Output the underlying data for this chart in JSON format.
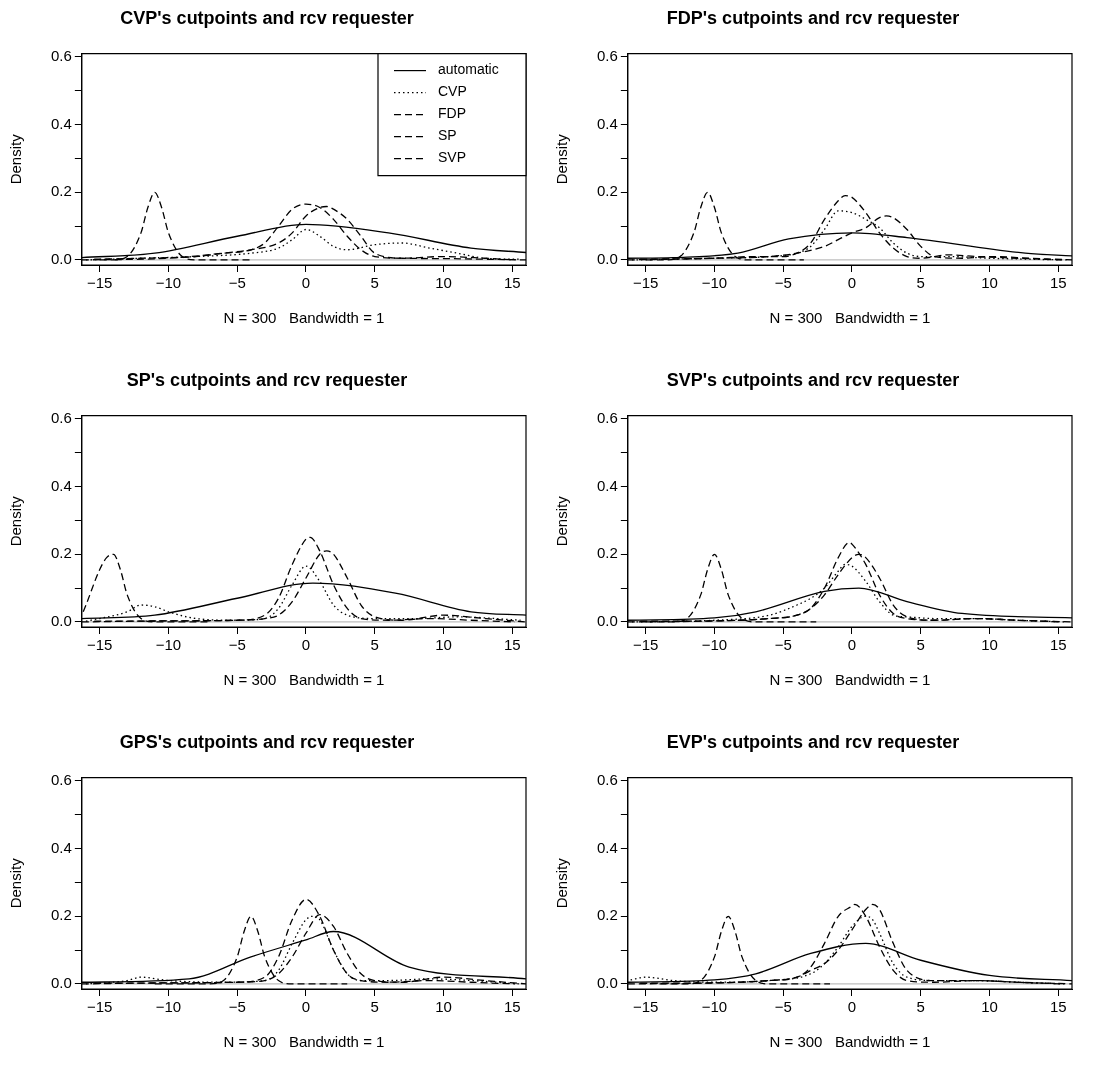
{
  "chart_data": [
    {
      "type": "line",
      "title": "CVP's cutpoints and rcv requester",
      "xlabel": "N = 300   Bandwidth = 1",
      "ylabel": "Density",
      "xlim": [
        -16.3,
        16
      ],
      "ylim": [
        -0.015,
        0.61
      ],
      "xticks": [
        {
          "value": -15,
          "label": "−15"
        },
        {
          "value": -10,
          "label": "−10"
        },
        {
          "value": -5,
          "label": "−5"
        },
        0,
        5,
        10,
        15
      ],
      "yticks": [
        {
          "value": 0,
          "label": "0.0"
        },
        {
          "value": 0.1,
          "label": null
        },
        0.2,
        {
          "value": 0.3,
          "label": null
        },
        0.4,
        {
          "value": 0.5,
          "label": null
        },
        0.6
      ],
      "grid": false,
      "legend": "top right",
      "ref_lines": [
        {
          "axis": "y",
          "value": 0,
          "color": "#bebebe"
        }
      ],
      "series": [
        {
          "name": "automatic",
          "color": "#000000",
          "line_style": "solid",
          "x": [
            -16.3,
            -11,
            -5,
            0,
            6,
            12,
            16
          ],
          "values": [
            0.007,
            0.02,
            0.07,
            0.105,
            0.08,
            0.035,
            0.022
          ]
        },
        {
          "name": "CVP",
          "color": "#000000",
          "line_style": "dotted",
          "x": [
            -16,
            -12,
            -8,
            -4,
            -2,
            -1,
            0,
            1,
            2,
            3,
            5,
            7,
            9,
            11,
            13,
            15.6
          ],
          "values": [
            0,
            0.005,
            0.01,
            0.02,
            0.035,
            0.06,
            0.09,
            0.07,
            0.04,
            0.03,
            0.045,
            0.05,
            0.035,
            0.02,
            0.005,
            0.002
          ]
        },
        {
          "name": "FDP",
          "color": "#000000",
          "line_style": "dashed",
          "x": [
            -15.4,
            -12,
            -8,
            -6,
            -4,
            -2,
            -1,
            0,
            1,
            1.5,
            2,
            3,
            4,
            5,
            7,
            10,
            13,
            16
          ],
          "values": [
            0.002,
            0.005,
            0.01,
            0.02,
            0.03,
            0.05,
            0.08,
            0.13,
            0.155,
            0.158,
            0.15,
            0.12,
            0.07,
            0.02,
            0.005,
            0.004,
            0.002,
            0
          ]
        },
        {
          "name": "SP",
          "color": "#000000",
          "line_style": "dashed",
          "x": [
            -16.3,
            -10,
            -6,
            -4,
            -3,
            -2,
            -1,
            0,
            1,
            2,
            3,
            4,
            5,
            7,
            10,
            13,
            15.2
          ],
          "values": [
            0,
            0.005,
            0.02,
            0.03,
            0.05,
            0.1,
            0.15,
            0.165,
            0.155,
            0.12,
            0.07,
            0.03,
            0.01,
            0.005,
            0.01,
            0.005,
            0
          ]
        },
        {
          "name": "SVP",
          "color": "#000000",
          "line_style": "dashed",
          "x": [
            -15,
            -14,
            -13,
            -12,
            -11.5,
            -11,
            -10.5,
            -10,
            -9,
            -8,
            -4
          ],
          "values": [
            0,
            0,
            0.01,
            0.08,
            0.155,
            0.2,
            0.155,
            0.08,
            0.01,
            0,
            0
          ]
        }
      ]
    },
    {
      "type": "line",
      "title": "FDP's cutpoints and rcv requester",
      "xlabel": "N = 300   Bandwidth = 1",
      "ylabel": "Density",
      "xlim": [
        -16.3,
        16
      ],
      "ylim": [
        -0.015,
        0.61
      ],
      "xticks": [
        {
          "value": -15,
          "label": "−15"
        },
        {
          "value": -10,
          "label": "−10"
        },
        {
          "value": -5,
          "label": "−5"
        },
        0,
        5,
        10,
        15
      ],
      "yticks": [
        {
          "value": 0,
          "label": "0.0"
        },
        {
          "value": 0.1,
          "label": null
        },
        0.2,
        {
          "value": 0.3,
          "label": null
        },
        0.4,
        {
          "value": 0.5,
          "label": null
        },
        0.6
      ],
      "grid": false,
      "ref_lines": [
        {
          "axis": "y",
          "value": 0,
          "color": "#bebebe"
        }
      ],
      "series": [
        {
          "color": "#000000",
          "line_style": "solid",
          "x": [
            -16.3,
            -13,
            -8.3,
            -4.6,
            0,
            4,
            12.6,
            16
          ],
          "values": [
            0.005,
            0.007,
            0.02,
            0.062,
            0.08,
            0.066,
            0.02,
            0.012
          ]
        },
        {
          "color": "#000000",
          "line_style": "dotted",
          "x": [
            -16,
            -10,
            -6,
            -4,
            -3,
            -2,
            -1,
            0,
            1,
            2,
            3,
            4,
            5,
            7,
            10,
            13,
            15.6
          ],
          "values": [
            0,
            0.005,
            0.01,
            0.02,
            0.04,
            0.09,
            0.145,
            0.14,
            0.12,
            0.095,
            0.05,
            0.02,
            0.01,
            0.01,
            0.005,
            0.002,
            0
          ]
        },
        {
          "color": "#000000",
          "line_style": "dashed",
          "x": [
            -15.4,
            -10,
            -6,
            -4,
            -2,
            -1,
            0,
            1,
            2,
            2.5,
            3,
            4,
            5,
            6,
            8,
            10,
            13,
            16
          ],
          "values": [
            0.002,
            0.005,
            0.01,
            0.02,
            0.04,
            0.06,
            0.08,
            0.095,
            0.125,
            0.13,
            0.125,
            0.09,
            0.04,
            0.01,
            0.005,
            0.01,
            0.005,
            0
          ]
        },
        {
          "color": "#000000",
          "line_style": "dashed",
          "x": [
            -16.3,
            -10,
            -7,
            -5,
            -4,
            -3,
            -2,
            -1,
            -0.5,
            0,
            1,
            2,
            3,
            4,
            5,
            7,
            9,
            12,
            15.2
          ],
          "values": [
            0,
            0.005,
            0.01,
            0.01,
            0.02,
            0.05,
            0.12,
            0.175,
            0.19,
            0.185,
            0.14,
            0.08,
            0.035,
            0.01,
            0.005,
            0.015,
            0.01,
            0.005,
            0
          ]
        },
        {
          "color": "#000000",
          "line_style": "dashed",
          "x": [
            -15,
            -13.5,
            -12.5,
            -11.5,
            -11,
            -10.5,
            -10,
            -9.5,
            -8.5,
            -7.5,
            -3.5
          ],
          "values": [
            0,
            0,
            0.01,
            0.08,
            0.155,
            0.2,
            0.155,
            0.08,
            0.01,
            0,
            0
          ]
        }
      ]
    },
    {
      "type": "line",
      "title": "SP's cutpoints and rcv requester",
      "xlabel": "N = 300   Bandwidth = 1",
      "ylabel": "Density",
      "xlim": [
        -16.3,
        16
      ],
      "ylim": [
        -0.015,
        0.61
      ],
      "xticks": [
        {
          "value": -15,
          "label": "−15"
        },
        {
          "value": -10,
          "label": "−10"
        },
        {
          "value": -5,
          "label": "−5"
        },
        0,
        5,
        10,
        15
      ],
      "yticks": [
        {
          "value": 0,
          "label": "0.0"
        },
        {
          "value": 0.1,
          "label": null
        },
        0.2,
        {
          "value": 0.3,
          "label": null
        },
        0.4,
        {
          "value": 0.5,
          "label": null
        },
        0.6
      ],
      "grid": false,
      "ref_lines": [
        {
          "axis": "y",
          "value": 0,
          "color": "#bebebe"
        }
      ],
      "series": [
        {
          "color": "#000000",
          "line_style": "solid",
          "x": [
            -16.3,
            -11,
            -5,
            0.5,
            6.5,
            12,
            16
          ],
          "values": [
            0.01,
            0.02,
            0.07,
            0.115,
            0.085,
            0.03,
            0.02
          ]
        },
        {
          "color": "#000000",
          "line_style": "dotted",
          "x": [
            -16,
            -13,
            -12,
            -11,
            -10,
            -8,
            -5,
            -3,
            -2,
            -1,
            0,
            1,
            2,
            3,
            5,
            8,
            11,
            15.6
          ],
          "values": [
            0.002,
            0.03,
            0.05,
            0.045,
            0.03,
            0.01,
            0.005,
            0.01,
            0.04,
            0.11,
            0.165,
            0.12,
            0.05,
            0.02,
            0.01,
            0.01,
            0.015,
            0.005
          ]
        },
        {
          "color": "#000000",
          "line_style": "dashed",
          "x": [
            -15.4,
            -10,
            -5,
            -3,
            -2,
            -1,
            0,
            1,
            1.5,
            2,
            3,
            4,
            5,
            7,
            10,
            13,
            16
          ],
          "values": [
            0.002,
            0.003,
            0.005,
            0.01,
            0.02,
            0.06,
            0.13,
            0.2,
            0.21,
            0.2,
            0.13,
            0.05,
            0.015,
            0.005,
            0.02,
            0.01,
            0
          ]
        },
        {
          "color": "#000000",
          "line_style": "dashed",
          "x": [
            -16.3,
            -10,
            -5,
            -3,
            -2,
            -1,
            0,
            0.3,
            1,
            2,
            3,
            4,
            6,
            9,
            12,
            15.2
          ],
          "values": [
            0,
            0.003,
            0.005,
            0.02,
            0.07,
            0.17,
            0.245,
            0.25,
            0.21,
            0.11,
            0.04,
            0.01,
            0.005,
            0.01,
            0.005,
            0
          ]
        },
        {
          "color": "#000000",
          "line_style": "dashed",
          "x": [
            -16.2,
            -16,
            -15,
            -14.5,
            -14,
            -13.5,
            -13,
            -12,
            -11,
            -7
          ],
          "values": [
            0.03,
            0.05,
            0.155,
            0.19,
            0.2,
            0.155,
            0.08,
            0.01,
            0,
            0
          ]
        }
      ]
    },
    {
      "type": "line",
      "title": "SVP's cutpoints and rcv requester",
      "xlabel": "N = 300   Bandwidth = 1",
      "ylabel": "Density",
      "xlim": [
        -16.3,
        16
      ],
      "ylim": [
        -0.015,
        0.61
      ],
      "xticks": [
        {
          "value": -15,
          "label": "−15"
        },
        {
          "value": -10,
          "label": "−10"
        },
        {
          "value": -5,
          "label": "−5"
        },
        0,
        5,
        10,
        15
      ],
      "yticks": [
        {
          "value": 0,
          "label": "0.0"
        },
        {
          "value": 0.1,
          "label": null
        },
        0.2,
        {
          "value": 0.3,
          "label": null
        },
        0.4,
        {
          "value": 0.5,
          "label": null
        },
        0.6
      ],
      "grid": false,
      "ref_lines": [
        {
          "axis": "y",
          "value": 0,
          "color": "#bebebe"
        }
      ],
      "series": [
        {
          "color": "#000000",
          "line_style": "solid",
          "x": [
            -16.3,
            -10,
            -7,
            -2,
            0.5,
            4,
            8,
            16
          ],
          "values": [
            0.005,
            0.012,
            0.03,
            0.09,
            0.1,
            0.06,
            0.025,
            0.012
          ]
        },
        {
          "color": "#000000",
          "line_style": "dotted",
          "x": [
            -16,
            -10,
            -6,
            -4,
            -3,
            -2,
            -1,
            -0.5,
            0,
            1,
            2,
            3,
            4,
            6,
            9,
            12,
            15.6
          ],
          "values": [
            0,
            0.005,
            0.02,
            0.05,
            0.07,
            0.1,
            0.15,
            0.17,
            0.165,
            0.12,
            0.06,
            0.02,
            0.015,
            0.01,
            0.01,
            0.005,
            0
          ]
        },
        {
          "color": "#000000",
          "line_style": "dashed",
          "x": [
            -15.4,
            -10,
            -6,
            -4,
            -3,
            -2,
            -1,
            0,
            0.5,
            1,
            2,
            3,
            4,
            6,
            9,
            12,
            16
          ],
          "values": [
            0.002,
            0.003,
            0.01,
            0.02,
            0.04,
            0.08,
            0.14,
            0.19,
            0.2,
            0.19,
            0.13,
            0.05,
            0.015,
            0.005,
            0.01,
            0.005,
            0
          ]
        },
        {
          "color": "#000000",
          "line_style": "dashed",
          "x": [
            -16.3,
            -10,
            -6,
            -4,
            -3,
            -2,
            -1,
            -0.2,
            0,
            1,
            2,
            3,
            4,
            6,
            9,
            12,
            15.2
          ],
          "values": [
            0,
            0.003,
            0.01,
            0.02,
            0.04,
            0.1,
            0.19,
            0.235,
            0.23,
            0.17,
            0.08,
            0.025,
            0.01,
            0.005,
            0.01,
            0.005,
            0
          ]
        },
        {
          "color": "#000000",
          "line_style": "dashed",
          "x": [
            -15,
            -13,
            -12,
            -11,
            -10.5,
            -10,
            -9.5,
            -9,
            -8,
            -7,
            -2.6
          ],
          "values": [
            0,
            0,
            0.01,
            0.08,
            0.155,
            0.2,
            0.155,
            0.08,
            0.01,
            0,
            0
          ]
        }
      ]
    },
    {
      "type": "line",
      "title": "GPS's cutpoints and rcv requester",
      "xlabel": "N = 300   Bandwidth = 1",
      "ylabel": "Density",
      "xlim": [
        -16.3,
        16
      ],
      "ylim": [
        -0.015,
        0.61
      ],
      "xticks": [
        {
          "value": -15,
          "label": "−15"
        },
        {
          "value": -10,
          "label": "−10"
        },
        {
          "value": -5,
          "label": "−5"
        },
        0,
        5,
        10,
        15
      ],
      "yticks": [
        {
          "value": 0,
          "label": "0.0"
        },
        {
          "value": 0.1,
          "label": null
        },
        0.2,
        {
          "value": 0.3,
          "label": null
        },
        0.4,
        {
          "value": 0.5,
          "label": null
        },
        0.6
      ],
      "grid": false,
      "ref_lines": [
        {
          "axis": "y",
          "value": 0,
          "color": "#bebebe"
        }
      ],
      "series": [
        {
          "color": "#000000",
          "line_style": "solid",
          "x": [
            -16.3,
            -8.5,
            -4,
            0,
            2,
            7.5,
            16
          ],
          "values": [
            0.005,
            0.015,
            0.08,
            0.13,
            0.155,
            0.05,
            0.015
          ]
        },
        {
          "color": "#000000",
          "line_style": "dotted",
          "x": [
            -16,
            -13,
            -12,
            -10,
            -6,
            -3,
            -2,
            -1,
            0,
            0.5,
            1,
            2,
            3,
            4,
            6,
            9,
            12,
            15.6
          ],
          "values": [
            0,
            0.01,
            0.02,
            0.01,
            0.005,
            0.01,
            0.04,
            0.12,
            0.19,
            0.2,
            0.19,
            0.1,
            0.03,
            0.01,
            0.01,
            0.015,
            0.01,
            0
          ]
        },
        {
          "color": "#000000",
          "line_style": "dashed",
          "x": [
            -15.4,
            -10,
            -5,
            -3,
            -2,
            -1,
            0,
            1,
            2,
            3,
            4,
            5,
            7,
            10,
            13,
            16
          ],
          "values": [
            0.002,
            0.003,
            0.005,
            0.01,
            0.03,
            0.08,
            0.15,
            0.205,
            0.17,
            0.09,
            0.03,
            0.01,
            0.005,
            0.02,
            0.01,
            0
          ]
        },
        {
          "color": "#000000",
          "line_style": "dashed",
          "x": [
            -16.3,
            -10,
            -5,
            -3,
            -2,
            -1,
            0,
            1,
            2,
            3,
            4,
            6,
            9,
            12,
            15.2
          ],
          "values": [
            0,
            0.003,
            0.005,
            0.02,
            0.08,
            0.19,
            0.25,
            0.2,
            0.1,
            0.03,
            0.01,
            0.005,
            0.01,
            0.005,
            0
          ]
        },
        {
          "color": "#000000",
          "line_style": "dashed",
          "x": [
            -11,
            -7,
            -6,
            -5,
            -4.5,
            -4,
            -3.5,
            -3,
            -2,
            -1,
            3
          ],
          "values": [
            0,
            0,
            0.01,
            0.08,
            0.155,
            0.2,
            0.155,
            0.08,
            0.01,
            0,
            0
          ]
        }
      ]
    },
    {
      "type": "line",
      "title": "EVP's cutpoints and rcv requester",
      "xlabel": "N = 300   Bandwidth = 1",
      "ylabel": "Density",
      "xlim": [
        -16.3,
        16
      ],
      "ylim": [
        -0.015,
        0.61
      ],
      "xticks": [
        {
          "value": -15,
          "label": "−15"
        },
        {
          "value": -10,
          "label": "−10"
        },
        {
          "value": -5,
          "label": "−5"
        },
        0,
        5,
        10,
        15
      ],
      "yticks": [
        {
          "value": 0,
          "label": "0.0"
        },
        {
          "value": 0.1,
          "label": null
        },
        0.2,
        {
          "value": 0.3,
          "label": null
        },
        0.4,
        {
          "value": 0.5,
          "label": null
        },
        0.6
      ],
      "grid": false,
      "ref_lines": [
        {
          "axis": "y",
          "value": 0,
          "color": "#bebebe"
        }
      ],
      "series": [
        {
          "color": "#000000",
          "line_style": "solid",
          "x": [
            -16.3,
            -10,
            -7,
            -3,
            1,
            5,
            10,
            16
          ],
          "values": [
            0.005,
            0.012,
            0.03,
            0.09,
            0.12,
            0.07,
            0.025,
            0.01
          ]
        },
        {
          "color": "#000000",
          "line_style": "dotted",
          "x": [
            -16.1,
            -15,
            -13,
            -10,
            -6,
            -3,
            -2,
            -1,
            0,
            1,
            1.5,
            2,
            3,
            4,
            6,
            9,
            12,
            15.6
          ],
          "values": [
            0.012,
            0.02,
            0.01,
            0.005,
            0.01,
            0.03,
            0.06,
            0.11,
            0.17,
            0.2,
            0.19,
            0.15,
            0.06,
            0.02,
            0.01,
            0.01,
            0.005,
            0
          ]
        },
        {
          "color": "#000000",
          "line_style": "dashed",
          "x": [
            -15.4,
            -10,
            -6,
            -4,
            -3,
            -2,
            -1,
            0,
            1,
            1.5,
            2,
            3,
            4,
            6,
            9,
            12,
            16
          ],
          "values": [
            0.002,
            0.003,
            0.01,
            0.02,
            0.04,
            0.06,
            0.1,
            0.16,
            0.22,
            0.235,
            0.22,
            0.12,
            0.04,
            0.01,
            0.01,
            0.005,
            0
          ]
        },
        {
          "color": "#000000",
          "line_style": "dashed",
          "x": [
            -16.3,
            -10,
            -6,
            -4,
            -3,
            -2,
            -1,
            0,
            0.2,
            1,
            2,
            3,
            4,
            6,
            9,
            12,
            15.2
          ],
          "values": [
            0,
            0.003,
            0.01,
            0.02,
            0.05,
            0.12,
            0.2,
            0.23,
            0.235,
            0.2,
            0.11,
            0.04,
            0.01,
            0.005,
            0.01,
            0.005,
            0
          ]
        },
        {
          "color": "#000000",
          "line_style": "dashed",
          "x": [
            -14,
            -12,
            -11,
            -10,
            -9.5,
            -9,
            -8.5,
            -8,
            -7,
            -6,
            -1.6
          ],
          "values": [
            0,
            0,
            0.01,
            0.08,
            0.155,
            0.2,
            0.155,
            0.08,
            0.01,
            0,
            0
          ]
        }
      ]
    }
  ]
}
